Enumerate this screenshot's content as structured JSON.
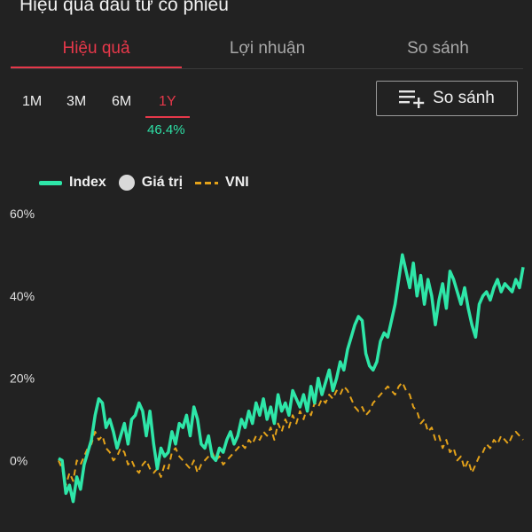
{
  "page": {
    "title": "Hiệu quả đầu tư cổ phiếu"
  },
  "tabs": [
    {
      "label": "Hiệu quả",
      "active": true
    },
    {
      "label": "Lợi nhuận",
      "active": false
    },
    {
      "label": "So sánh",
      "active": false
    }
  ],
  "periods": {
    "items": [
      {
        "label": "1M",
        "active": false
      },
      {
        "label": "3M",
        "active": false
      },
      {
        "label": "6M",
        "active": false
      },
      {
        "label": "1Y",
        "active": true
      }
    ],
    "selected_return": "46.4%"
  },
  "compare_button": {
    "label": "So sánh",
    "icon": "playlist-add-icon"
  },
  "legend": [
    {
      "label": "Index",
      "style": "solid-line",
      "color": "#2ee6a8"
    },
    {
      "label": "Giá trị",
      "style": "dot",
      "color": "#d9d9d9"
    },
    {
      "label": "VNI",
      "style": "dashed-line",
      "color": "#e3a21a"
    }
  ],
  "colors": {
    "background": "#222222",
    "accent": "#e6384a",
    "positive": "#2ee0a6",
    "index": "#2ee6a8",
    "vni": "#e3a21a"
  },
  "chart_data": {
    "type": "line",
    "y_tick_labels": [
      "60%",
      "40%",
      "20%",
      "0%"
    ],
    "y_ticks": [
      60,
      40,
      20,
      0
    ],
    "ylim": [
      -12,
      60
    ],
    "grid": false,
    "legend_position": "top-left",
    "series": [
      {
        "name": "Index",
        "color": "#2ee6a8",
        "style": "solid",
        "values": [
          0.5,
          0,
          -8,
          -6,
          -10,
          -4,
          -7,
          -1,
          2,
          5,
          11,
          15,
          14,
          8,
          10,
          7,
          3,
          6,
          9,
          4,
          10,
          11,
          14,
          12,
          6,
          12,
          4,
          -2,
          3,
          1,
          2,
          7,
          4,
          9,
          8,
          11,
          6,
          13,
          10,
          4,
          3,
          6,
          1,
          0,
          3,
          2,
          5,
          7,
          4,
          6,
          10,
          8,
          12,
          9,
          14,
          11,
          15,
          10,
          13,
          9,
          16,
          12,
          14,
          11,
          17,
          15,
          13,
          16,
          12,
          18,
          14,
          20,
          16,
          19,
          22,
          17,
          20,
          24,
          22,
          27,
          30,
          33,
          35,
          34,
          26,
          23,
          22,
          24,
          29,
          31,
          30,
          34,
          38,
          44,
          50,
          46,
          42,
          48,
          40,
          45,
          38,
          44,
          40,
          33,
          39,
          43,
          37,
          46,
          44,
          41,
          38,
          42,
          37,
          33,
          30,
          38,
          40,
          41,
          39,
          42,
          44,
          41,
          43,
          42,
          41,
          44,
          42,
          47
        ]
      },
      {
        "name": "VNI",
        "color": "#e3a21a",
        "style": "dashed",
        "values": [
          0,
          -2,
          -6,
          -3,
          -5,
          0,
          -1,
          1,
          3,
          4,
          7,
          5,
          6,
          3,
          2,
          0,
          1,
          3,
          2,
          -1,
          0,
          -2,
          -3,
          -1,
          0,
          -2,
          -3,
          -2,
          -4,
          -1,
          -2,
          2,
          3,
          1,
          0,
          -1,
          -2,
          0,
          -3,
          -1,
          0,
          1,
          2,
          0,
          1,
          -1,
          0,
          1,
          2,
          3,
          4,
          3,
          5,
          4,
          6,
          5,
          7,
          6,
          8,
          5,
          9,
          7,
          10,
          8,
          11,
          9,
          12,
          10,
          13,
          11,
          14,
          13,
          15,
          14,
          16,
          15,
          17,
          16,
          18,
          17,
          15,
          13,
          12,
          13,
          11,
          12,
          14,
          15,
          16,
          17,
          18,
          17,
          16,
          18,
          19,
          17,
          16,
          13,
          12,
          9,
          10,
          7,
          8,
          5,
          6,
          3,
          5,
          2,
          3,
          0,
          1,
          -2,
          0,
          -3,
          -1,
          1,
          2,
          4,
          3,
          5,
          4,
          6,
          5,
          4,
          6,
          7,
          6,
          5
        ]
      }
    ]
  }
}
